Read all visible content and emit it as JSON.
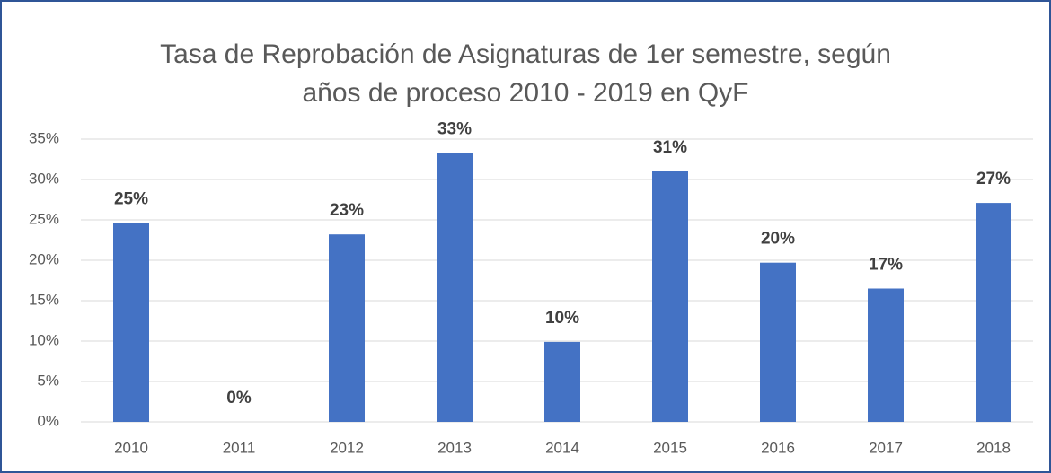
{
  "chart_data": {
    "type": "bar",
    "title": [
      "Tasa de Reprobación de Asignaturas de 1er semestre, según",
      "años de proceso 2010 - 2019 en QyF"
    ],
    "categories": [
      "2010",
      "2011",
      "2012",
      "2013",
      "2014",
      "2015",
      "2016",
      "2017",
      "2018"
    ],
    "values": [
      24.6,
      0,
      23.2,
      33.3,
      9.9,
      31.0,
      19.7,
      16.5,
      27.1
    ],
    "value_labels": [
      "25%",
      "0%",
      "23%",
      "33%",
      "10%",
      "31%",
      "20%",
      "17%",
      "27%"
    ],
    "color": "#4472c4",
    "ylim": [
      0,
      35
    ],
    "yticks": [
      {
        "value": 0,
        "label": "0%"
      },
      {
        "value": 5,
        "label": "5%"
      },
      {
        "value": 10,
        "label": "10%"
      },
      {
        "value": 15,
        "label": "15%"
      },
      {
        "value": 20,
        "label": "20%"
      },
      {
        "value": 25,
        "label": "25%"
      },
      {
        "value": 30,
        "label": "30%"
      },
      {
        "value": 35,
        "label": "35%"
      }
    ],
    "grid": true
  }
}
